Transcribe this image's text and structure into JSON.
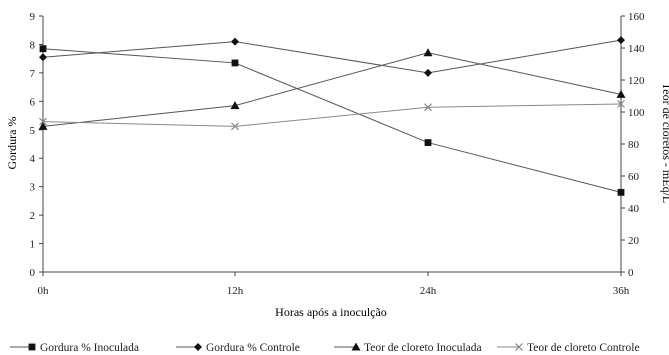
{
  "chart_data": {
    "type": "line",
    "x": [
      "0h",
      "12h",
      "24h",
      "36h"
    ],
    "xlabel": "Horas após a inoculção",
    "ylabel_left": "Gordura %",
    "ylabel_right": "Teor de cloretos - mEq/L",
    "ylim_left": [
      0,
      9
    ],
    "ylim_right": [
      0,
      160
    ],
    "yticks_left": [
      "0",
      "1",
      "2",
      "3",
      "4",
      "5",
      "6",
      "7",
      "8",
      "9"
    ],
    "yticks_right": [
      "0",
      "20",
      "40",
      "60",
      "80",
      "100",
      "120",
      "140",
      "160"
    ],
    "grid": false,
    "legend_position": "bottom",
    "series": [
      {
        "name": "Gordura % Inoculada",
        "axis": "left",
        "marker": "square",
        "color": "#555555",
        "values": [
          7.85,
          7.35,
          4.55,
          2.8
        ]
      },
      {
        "name": "Gordura % Controle",
        "axis": "left",
        "marker": "diamond",
        "color": "#555555",
        "values": [
          7.55,
          8.1,
          7.0,
          8.15
        ]
      },
      {
        "name": "Teor de cloreto Inoculada",
        "axis": "right",
        "marker": "triangle",
        "color": "#555555",
        "values": [
          91,
          104,
          137,
          111
        ]
      },
      {
        "name": "Teor de cloreto Controle",
        "axis": "right",
        "marker": "x",
        "color": "#888888",
        "values": [
          94,
          91,
          103,
          105
        ]
      }
    ]
  }
}
